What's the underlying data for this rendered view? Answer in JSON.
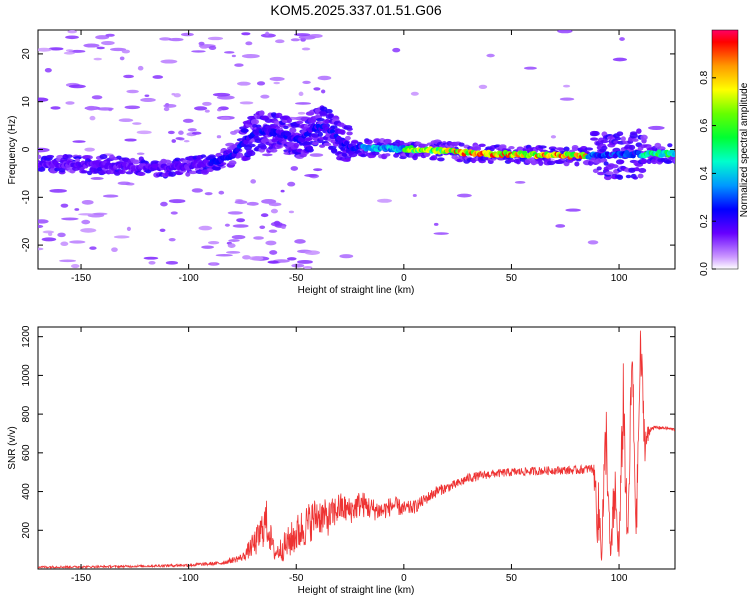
{
  "chart_data": [
    {
      "type": "heatmap",
      "title": "KOM5.2025.337.01.51.G06",
      "xlabel": "Height of straight line (km)",
      "ylabel": "Frequency (Hz)",
      "xlim": [
        -170,
        126
      ],
      "ylim": [
        -25,
        25
      ],
      "xticks": [
        -150,
        -100,
        -50,
        0,
        50,
        100
      ],
      "yticks": [
        -20,
        -10,
        0,
        10,
        20
      ],
      "colorbar": {
        "label": "Normalized spectral amplitude",
        "range": [
          0,
          1
        ],
        "ticks": [
          "0.0",
          "0.2",
          "0.4",
          "0.6",
          "0.8"
        ]
      },
      "ridge": {
        "description": "dominant frequency ridge vs height (Hz)",
        "x": [
          -170,
          -140,
          -125,
          -110,
          -100,
          -88,
          -80,
          -72,
          -68,
          -60,
          -54,
          -48,
          -42,
          -36,
          -30,
          -25,
          -18,
          -10,
          0,
          10,
          20,
          40,
          60,
          80,
          95,
          100,
          110,
          126
        ],
        "y": [
          -3,
          -3.2,
          -3.6,
          -3.8,
          -3.6,
          -2.6,
          -1.5,
          2.5,
          4.0,
          3.5,
          3.0,
          2.0,
          4.5,
          4.8,
          2.0,
          0.6,
          0.2,
          0.3,
          0.1,
          0.0,
          -0.4,
          -0.9,
          -1.1,
          -1.3,
          -1.2,
          -1.0,
          -1.0,
          -0.8
        ],
        "peak_amplitude_range_km": [
          0,
          125
        ]
      }
    },
    {
      "type": "line",
      "xlabel": "Height of straight line (km)",
      "ylabel": "SNR (v/v)",
      "xlim": [
        -170,
        126
      ],
      "ylim": [
        0,
        1250
      ],
      "xticks": [
        -150,
        -100,
        -50,
        0,
        50,
        100
      ],
      "yticks": [
        200,
        400,
        600,
        800,
        1000,
        1200
      ],
      "series": [
        {
          "name": "SNR",
          "color": "#ee3333",
          "x": [
            -170,
            -140,
            -120,
            -100,
            -85,
            -75,
            -68,
            -64,
            -60,
            -55,
            -50,
            -45,
            -40,
            -35,
            -30,
            -25,
            -20,
            -15,
            -10,
            -5,
            0,
            5,
            10,
            15,
            20,
            25,
            30,
            40,
            50,
            60,
            70,
            80,
            88,
            90,
            92,
            94,
            96,
            98,
            100,
            102,
            104,
            106,
            108,
            110,
            112,
            115,
            120,
            126
          ],
          "y": [
            10,
            12,
            15,
            20,
            30,
            60,
            150,
            250,
            80,
            120,
            180,
            230,
            280,
            260,
            320,
            300,
            340,
            310,
            300,
            330,
            310,
            320,
            360,
            400,
            420,
            440,
            470,
            490,
            500,
            505,
            510,
            510,
            520,
            300,
            150,
            700,
            50,
            400,
            80,
            900,
            100,
            1100,
            200,
            1150,
            650,
            730,
            730,
            720
          ],
          "noise_amplitude": [
            5,
            5,
            6,
            8,
            10,
            20,
            80,
            120,
            40,
            80,
            100,
            110,
            100,
            90,
            80,
            70,
            70,
            60,
            50,
            50,
            40,
            35,
            30,
            30,
            25,
            25,
            25,
            22,
            22,
            22,
            22,
            22,
            25,
            200,
            150,
            200,
            50,
            200,
            60,
            250,
            100,
            200,
            120,
            150,
            100,
            10,
            8,
            8
          ]
        }
      ]
    }
  ]
}
